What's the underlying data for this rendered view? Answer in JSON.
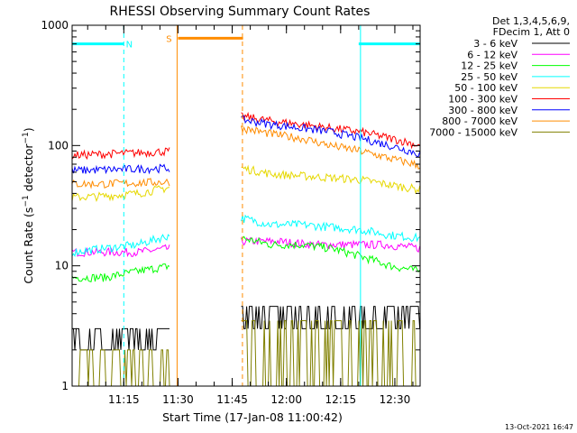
{
  "chart_data": {
    "type": "line",
    "title": "RHESSI Observing Summary Count Rates",
    "xlabel": "Start Time (17-Jan-08 11:00:42)",
    "ylabel": "Count Rate (s⁻¹ detector⁻¹)",
    "ylabel_parts": {
      "pre": "Count Rate (s",
      "sup1": "−1",
      "mid": " detector",
      "sup2": "−1",
      "post": ")"
    },
    "yscale": "log",
    "ylim": [
      1,
      1000
    ],
    "xlim": [
      "11:00:42",
      "12:37:00"
    ],
    "y_ticks": [
      {
        "v": 1,
        "label": "1"
      },
      {
        "v": 10,
        "label": "10"
      },
      {
        "v": 100,
        "label": "100"
      },
      {
        "v": 1000,
        "label": "1000"
      }
    ],
    "x_ticks": [
      "11:15",
      "11:30",
      "11:45",
      "12:00",
      "12:15",
      "12:30"
    ],
    "legend_position": "top-right",
    "legend_header": [
      "Det 1,3,4,5,6,9,",
      "FDecim 1, Att 0"
    ],
    "series": [
      {
        "name": "3 - 6 keV",
        "color": "#000000",
        "segments": [
          {
            "from": "11:00:42",
            "to": "11:28:00",
            "low": 2,
            "high": 3,
            "noise": true
          },
          {
            "from": "11:47:30",
            "to": "12:37:00",
            "low": 3,
            "high": 4.6,
            "noise": true
          }
        ]
      },
      {
        "name": "6 - 12 keV",
        "color": "#ff00ff",
        "segments": [
          {
            "from": "11:00:42",
            "to": "11:28:00",
            "v": [
              13,
              13,
              13,
              14
            ]
          },
          {
            "from": "11:47:30",
            "to": "12:37:00",
            "v": [
              16,
              16,
              15,
              15,
              15,
              14
            ]
          }
        ]
      },
      {
        "name": "12 - 25 keV",
        "color": "#00ff00",
        "segments": [
          {
            "from": "11:00:42",
            "to": "11:28:00",
            "v": [
              8,
              8,
              9,
              10
            ]
          },
          {
            "from": "11:47:30",
            "to": "12:37:00",
            "v": [
              17,
              15,
              15,
              14,
              12,
              10,
              9
            ]
          }
        ]
      },
      {
        "name": "25 - 50 keV",
        "color": "#00ffff",
        "segments": [
          {
            "from": "11:00:42",
            "to": "11:28:00",
            "v": [
              13,
              14,
              15,
              18
            ]
          },
          {
            "from": "11:47:30",
            "to": "12:37:00",
            "v": [
              25,
              22,
              22,
              21,
              20,
              18,
              17
            ]
          }
        ]
      },
      {
        "name": "50 - 100 keV",
        "color": "#e6d800",
        "segments": [
          {
            "from": "11:00:42",
            "to": "11:28:00",
            "v": [
              37,
              38,
              40,
              45
            ]
          },
          {
            "from": "11:47:30",
            "to": "12:37:00",
            "v": [
              65,
              58,
              56,
              54,
              52,
              47,
              43
            ]
          }
        ]
      },
      {
        "name": "100 - 300 keV",
        "color": "#ff0000",
        "segments": [
          {
            "from": "11:00:42",
            "to": "11:28:00",
            "v": [
              83,
              85,
              87,
              90
            ]
          },
          {
            "from": "11:47:30",
            "to": "12:37:00",
            "v": [
              175,
              160,
              150,
              140,
              130,
              115,
              100
            ]
          }
        ]
      },
      {
        "name": "300 - 800 keV",
        "color": "#0000ff",
        "segments": [
          {
            "from": "11:00:42",
            "to": "11:28:00",
            "v": [
              62,
              63,
              64,
              65
            ]
          },
          {
            "from": "11:47:30",
            "to": "12:37:00",
            "v": [
              165,
              150,
              140,
              130,
              115,
              100,
              85
            ]
          }
        ]
      },
      {
        "name": "800 - 7000 keV",
        "color": "#ff8c00",
        "segments": [
          {
            "from": "11:00:42",
            "to": "11:28:00",
            "v": [
              48,
              48,
              49,
              50
            ]
          },
          {
            "from": "11:47:30",
            "to": "12:37:00",
            "v": [
              140,
              125,
              115,
              100,
              90,
              78,
              68
            ]
          }
        ]
      },
      {
        "name": "7000 - 15000 keV",
        "color": "#808000",
        "segments": [
          {
            "from": "11:00:42",
            "to": "11:28:00",
            "low": 1,
            "high": 2,
            "noise": true
          },
          {
            "from": "11:47:30",
            "to": "12:37:00",
            "low": 1,
            "high": 3.5,
            "noise": true
          }
        ]
      }
    ],
    "flags": [
      {
        "label": "N",
        "color": "#00ffff",
        "level": 700,
        "spans": [
          [
            "11:00:42",
            "11:15:00"
          ],
          [
            "12:20:00",
            "12:37:00"
          ]
        ]
      },
      {
        "label": "S",
        "color": "#ff8c00",
        "level": 780,
        "spans": [
          [
            "11:30:00",
            "11:48:00"
          ]
        ]
      }
    ],
    "vlines": [
      {
        "t": "11:00:42",
        "color": "#00ffff",
        "style": "solid"
      },
      {
        "t": "11:15:00",
        "color": "#00ffff",
        "style": "dashed"
      },
      {
        "t": "11:29:45",
        "color": "#ff8c00",
        "style": "solid"
      },
      {
        "t": "11:47:50",
        "color": "#ff8c00",
        "style": "dashed"
      },
      {
        "t": "12:20:30",
        "color": "#00ffff",
        "style": "solid"
      },
      {
        "t": "12:37:00",
        "color": "#00ffff",
        "style": "dashed"
      }
    ]
  },
  "footer": {
    "timestamp": "13-Oct-2021 16:47"
  }
}
